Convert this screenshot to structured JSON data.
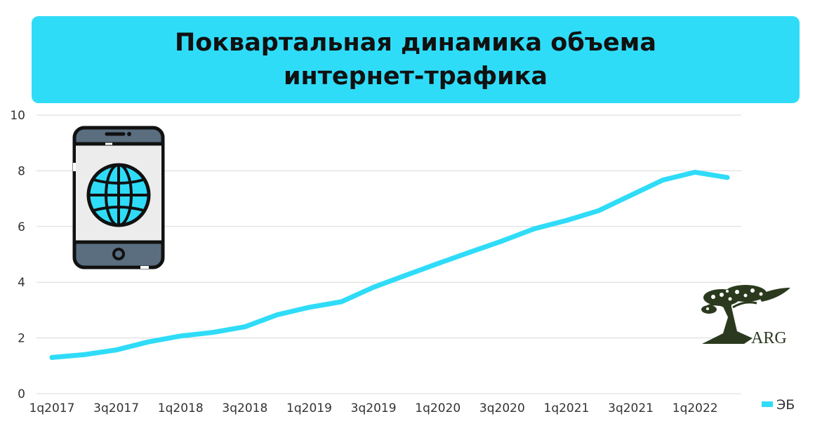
{
  "title": {
    "line1": "Поквартальная динамика объема",
    "line2": "интернет-трафика"
  },
  "colors": {
    "banner": "#2fdcf8",
    "series": "#2fdcf8",
    "grid": "#d9d9d9",
    "logo": "#2b3a1e"
  },
  "icons": {
    "phone": "smartphone-globe-icon",
    "logo": "arg-tree-logo"
  },
  "logo_text": "ARG",
  "chart_data": {
    "type": "line",
    "title": "Поквартальная динамика объема интернет-трафика",
    "xlabel": "",
    "ylabel": "",
    "ylim": [
      0,
      10
    ],
    "yticks": [
      0,
      2,
      4,
      6,
      8,
      10
    ],
    "grid": true,
    "legend_position": "bottom-right",
    "categories": [
      "1q2017",
      "2q2017",
      "3q2017",
      "4q2017",
      "1q2018",
      "2q2018",
      "3q2018",
      "4q2018",
      "1q2019",
      "2q2019",
      "3q2019",
      "4q2019",
      "1q2020",
      "2q2020",
      "3q2020",
      "4q2020",
      "1q2021",
      "2q2021",
      "3q2021",
      "4q2021",
      "1q2022",
      "2q2022"
    ],
    "tick_labels": [
      "1q2017",
      "3q2017",
      "1q2018",
      "3q2018",
      "1q2019",
      "3q2019",
      "1q2020",
      "3q2020",
      "1q2021",
      "3q2021",
      "1q2022"
    ],
    "series": [
      {
        "name": "ЭБ",
        "values": [
          1.3,
          1.4,
          1.57,
          1.86,
          2.07,
          2.2,
          2.4,
          2.83,
          3.1,
          3.3,
          3.82,
          4.25,
          4.67,
          5.08,
          5.48,
          5.92,
          6.22,
          6.57,
          7.12,
          7.67,
          7.95,
          7.76
        ]
      }
    ]
  }
}
